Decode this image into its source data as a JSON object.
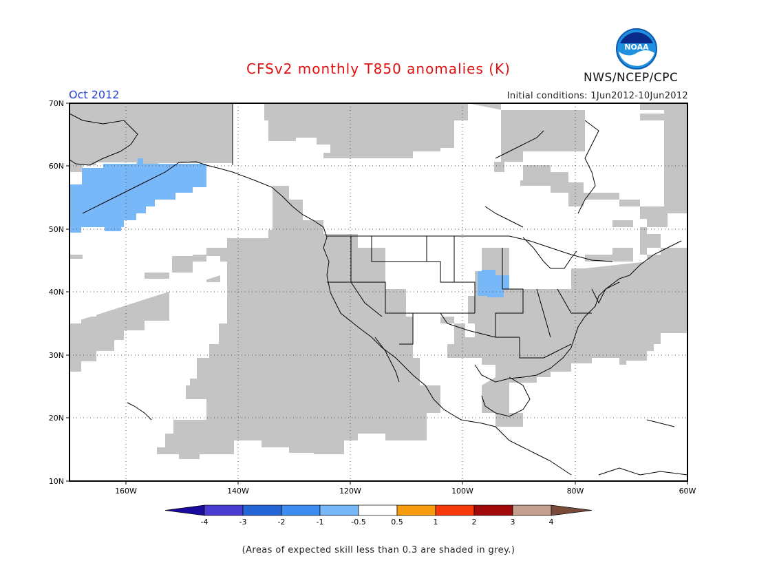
{
  "header": {
    "title": "CFSv2 monthly T850 anomalies (K)",
    "month": "Oct 2012",
    "initial_conditions": "Initial conditions: 1Jun2012-10Jun2012",
    "org": "NWS/NCEP/CPC",
    "logo_text": "NOAA"
  },
  "map": {
    "lat_labels": [
      "70N",
      "60N",
      "50N",
      "40N",
      "30N",
      "20N",
      "10N"
    ],
    "lon_labels": [
      "160W",
      "140W",
      "120W",
      "100W",
      "80W",
      "60W"
    ],
    "low_skill_color": "#c4c4c4",
    "cool_anomaly_color": "#78b8f8",
    "coast_color": "#000000"
  },
  "legend": {
    "labels": [
      "-4",
      "-3",
      "-2",
      "-1",
      "-0.5",
      "0.5",
      "1",
      "2",
      "3",
      "4"
    ],
    "colors": [
      "#1a0aa0",
      "#4a3cd0",
      "#2466d6",
      "#3d8cf0",
      "#78b8f8",
      "#ffffff",
      "#f89c10",
      "#f63a0a",
      "#a00a0a",
      "#c4a090",
      "#7a4a3a"
    ]
  },
  "footer": {
    "note": "(Areas of expected skill less than 0.3 are shaded in grey.)"
  }
}
